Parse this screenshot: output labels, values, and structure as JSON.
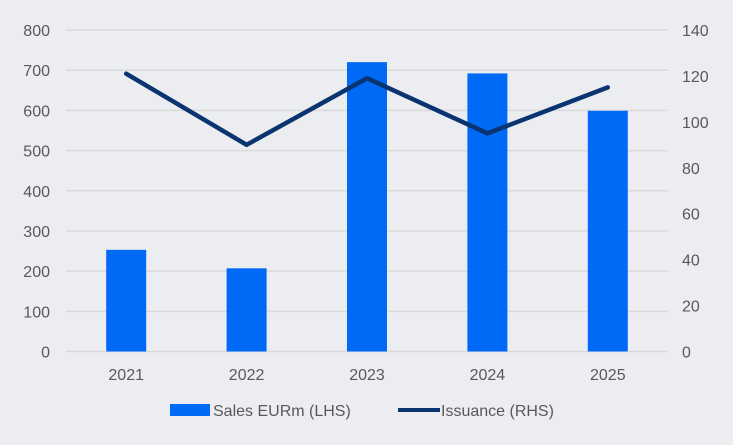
{
  "chart_data": {
    "type": "bar+line",
    "title": "",
    "categories": [
      "2021",
      "2022",
      "2023",
      "2024",
      "2025"
    ],
    "series": [
      {
        "name": "Sales EURm (LHS)",
        "type": "bar",
        "axis": "left",
        "color": "#0069f5",
        "values": [
          253,
          207,
          720,
          692,
          599
        ]
      },
      {
        "name": "Issuance (RHS)",
        "type": "line",
        "axis": "right",
        "color": "#0a3470",
        "values": [
          121,
          90,
          119,
          95,
          115
        ]
      }
    ],
    "left_axis": {
      "ylim": [
        0,
        800
      ],
      "ticks": [
        "0",
        "100",
        "200",
        "300",
        "400",
        "500",
        "600",
        "700",
        "800"
      ]
    },
    "right_axis": {
      "ylim": [
        0,
        140
      ],
      "ticks": [
        "0",
        "20",
        "40",
        "60",
        "80",
        "100",
        "120",
        "140"
      ]
    },
    "grid": true,
    "legend_position": "bottom",
    "colors": {
      "background": "#ecedf1",
      "grid": "#d9d9d9",
      "text": "#595959"
    }
  }
}
